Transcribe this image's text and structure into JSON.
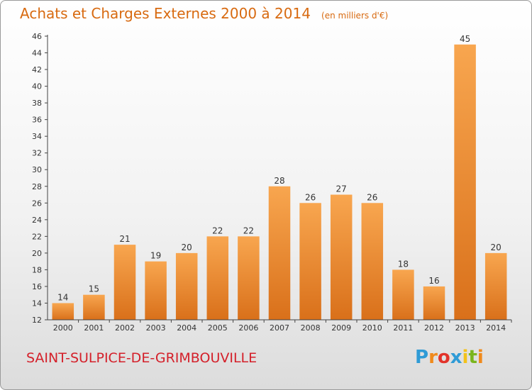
{
  "header": {
    "title": "Achats et Charges Externes 2000 à 2014",
    "unit": "(en milliers d'€)"
  },
  "footer": {
    "commune": "SAINT-SULPICE-DE-GRIMBOUVILLE",
    "brand_letters": [
      "P",
      "r",
      "o",
      "x",
      "i",
      "t",
      "i"
    ],
    "brand_colors": [
      "#2f9bd6",
      "#f08a1c",
      "#e2332a",
      "#2f9bd6",
      "#f3c21a",
      "#7ab51d",
      "#f08a1c"
    ]
  },
  "chart_data": {
    "type": "bar",
    "title": "Achats et Charges Externes 2000 à 2014",
    "subtitle": "(en milliers d'€)",
    "xlabel": "",
    "ylabel": "",
    "categories": [
      "2000",
      "2001",
      "2002",
      "2003",
      "2004",
      "2005",
      "2006",
      "2007",
      "2008",
      "2009",
      "2010",
      "2011",
      "2012",
      "2013",
      "2014"
    ],
    "values": [
      14,
      15,
      21,
      19,
      20,
      22,
      22,
      28,
      26,
      27,
      26,
      18,
      16,
      45,
      20
    ],
    "ylim": [
      12,
      46
    ],
    "ytick_step": 2,
    "grid": false,
    "legend": "none",
    "bar_color": "#f39a3e"
  }
}
